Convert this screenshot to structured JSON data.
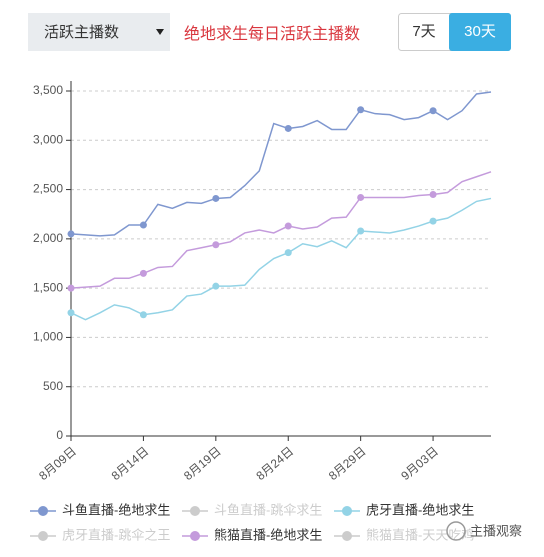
{
  "controls": {
    "dropdown": "活跃主播数",
    "buttons": [
      "7天",
      "30天"
    ],
    "active_button": 1
  },
  "watermark": "主播观察",
  "chart_data": {
    "type": "line",
    "title": "绝地求生每日活跃主播数",
    "categories": [
      "8月09日",
      null,
      null,
      null,
      null,
      "8月14日",
      null,
      null,
      null,
      null,
      "8月19日",
      null,
      null,
      null,
      null,
      "8月24日",
      null,
      null,
      null,
      null,
      "8月29日",
      null,
      null,
      null,
      null,
      "9月03日",
      null,
      null,
      null,
      null
    ],
    "series": [
      {
        "name": "斗鱼直播-绝地求生",
        "color": "#7f97cf",
        "values": [
          2050,
          2040,
          2030,
          2040,
          2140,
          2140,
          2350,
          2310,
          2370,
          2360,
          2410,
          2420,
          2540,
          2690,
          3170,
          3120,
          3140,
          3200,
          3110,
          3110,
          3310,
          3270,
          3260,
          3210,
          3230,
          3300,
          3210,
          3300,
          3470,
          3490
        ]
      },
      {
        "name": "虎牙直播-绝地求生",
        "color": "#93d3e6",
        "values": [
          1250,
          1180,
          1250,
          1330,
          1300,
          1230,
          1250,
          1280,
          1420,
          1440,
          1520,
          1520,
          1530,
          1690,
          1800,
          1860,
          1950,
          1920,
          1980,
          1910,
          2080,
          2070,
          2060,
          2090,
          2130,
          2180,
          2210,
          2290,
          2380,
          2410
        ]
      },
      {
        "name": "熊猫直播-绝地求生",
        "color": "#c49bdc",
        "values": [
          1500,
          1510,
          1520,
          1600,
          1600,
          1650,
          1710,
          1720,
          1880,
          1910,
          1940,
          1970,
          2060,
          2090,
          2060,
          2130,
          2100,
          2120,
          2210,
          2220,
          2420,
          2420,
          2420,
          2420,
          2440,
          2450,
          2470,
          2580,
          2630,
          2680
        ]
      }
    ],
    "inactive_series": [
      {
        "name": "斗鱼直播-跳伞求生",
        "color": "#cccccc"
      },
      {
        "name": "虎牙直播-跳伞之王",
        "color": "#cccccc"
      },
      {
        "name": "熊猫直播-天天吃鸡",
        "color": "#cccccc"
      }
    ],
    "ylim": [
      0,
      3500
    ],
    "yticks": [
      0,
      500,
      {
        "value": 1000,
        "label": "1,000"
      },
      {
        "value": 1500,
        "label": "1,500"
      },
      {
        "value": 2000,
        "label": "2,000"
      },
      {
        "value": 2500,
        "label": "2,500"
      },
      {
        "value": 3000,
        "label": "3,000"
      },
      {
        "value": 3500,
        "label": "3,500"
      }
    ],
    "grid": true
  }
}
